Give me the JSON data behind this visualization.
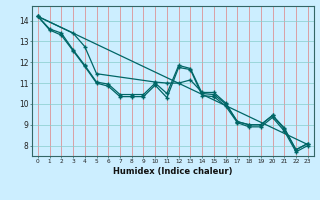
{
  "title": "",
  "xlabel": "Humidex (Indice chaleur)",
  "bg_color": "#cceeff",
  "grid_color_v": "#e08080",
  "grid_color_h": "#88cccc",
  "line_color": "#006666",
  "xlim": [
    -0.5,
    23.5
  ],
  "ylim": [
    7.5,
    14.7
  ],
  "xticks": [
    0,
    1,
    2,
    3,
    4,
    5,
    6,
    7,
    8,
    9,
    10,
    11,
    12,
    13,
    14,
    15,
    16,
    17,
    18,
    19,
    20,
    21,
    22,
    23
  ],
  "yticks": [
    8,
    9,
    10,
    11,
    12,
    13,
    14
  ],
  "line1_x": [
    0,
    1,
    2,
    3,
    4,
    5,
    6,
    7,
    8,
    9,
    10,
    11,
    12,
    13,
    14,
    15,
    16,
    17,
    18,
    19,
    20,
    21,
    22,
    23
  ],
  "line1_y": [
    14.2,
    13.6,
    13.4,
    12.6,
    11.85,
    11.05,
    10.95,
    10.45,
    10.45,
    10.45,
    11.0,
    10.5,
    11.85,
    11.7,
    10.5,
    10.45,
    10.0,
    9.15,
    9.0,
    9.0,
    9.45,
    8.8,
    7.8,
    8.1
  ],
  "line2_x": [
    0,
    1,
    2,
    3,
    4,
    5,
    6,
    7,
    8,
    9,
    10,
    11,
    12,
    13,
    14,
    15,
    16,
    17,
    18,
    19,
    20,
    21,
    22,
    23
  ],
  "line2_y": [
    14.2,
    13.55,
    13.3,
    12.55,
    11.8,
    11.0,
    10.85,
    10.35,
    10.35,
    10.35,
    10.9,
    10.3,
    11.75,
    11.65,
    10.4,
    10.35,
    9.9,
    9.1,
    8.9,
    8.9,
    9.35,
    8.7,
    7.7,
    8.0
  ],
  "line3_x": [
    0,
    3,
    4,
    5,
    10,
    11,
    12,
    13,
    14,
    15,
    16,
    17,
    18,
    19,
    20,
    21,
    22,
    23
  ],
  "line3_y": [
    14.2,
    13.4,
    12.75,
    11.45,
    11.05,
    11.0,
    11.0,
    11.15,
    10.55,
    10.55,
    10.05,
    9.15,
    9.0,
    9.0,
    9.45,
    8.85,
    7.8,
    8.1
  ],
  "line4_x": [
    0,
    23
  ],
  "line4_y": [
    14.2,
    8.05
  ]
}
